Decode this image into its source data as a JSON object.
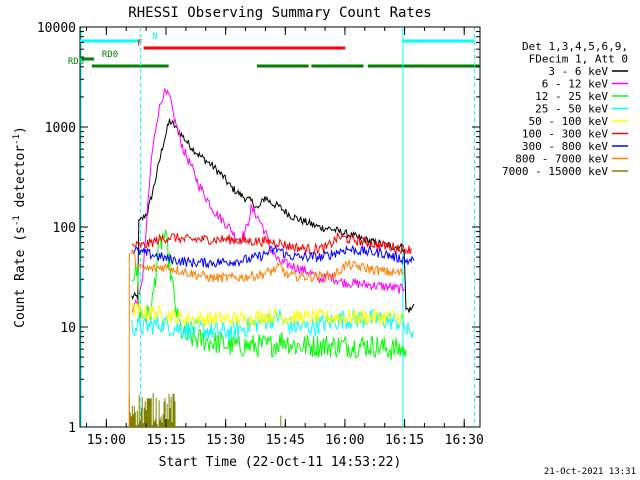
{
  "chart_data": {
    "type": "line",
    "title": "RHESSI Observing Summary Count Rates",
    "xlabel": "Start Time (22-Oct-11 14:53:22)",
    "ylabel_main": "Count Rate (s",
    "ylabel_sup1": "-1",
    "ylabel_mid": " detector",
    "ylabel_sup2": "-1",
    "ylabel_end": ")",
    "x_units": "minutes after 14:53:22",
    "xlim": [
      0,
      100.6
    ],
    "ylim": [
      1,
      10000
    ],
    "yscale": "log",
    "x_ticks": [
      {
        "t": 6.63,
        "label": "15:00"
      },
      {
        "t": 21.63,
        "label": "15:15"
      },
      {
        "t": 36.63,
        "label": "15:30"
      },
      {
        "t": 51.63,
        "label": "15:45"
      },
      {
        "t": 66.63,
        "label": "16:00"
      },
      {
        "t": 81.63,
        "label": "16:15"
      },
      {
        "t": 96.63,
        "label": "16:30"
      }
    ],
    "y_ticks": [
      {
        "v": 1,
        "label": "1"
      },
      {
        "v": 10,
        "label": "10"
      },
      {
        "v": 100,
        "label": "100"
      },
      {
        "v": 1000,
        "label": "1000"
      },
      {
        "v": 10000,
        "label": "10000"
      }
    ],
    "legend_header": [
      "Det 1,3,4,5,6,9,",
      "FDecim 1, Att 0"
    ],
    "legend_placement": "top-right, outside plot",
    "series": [
      {
        "name": "3 - 6 keV",
        "color": "#000000",
        "points": [
          [
            13,
            20
          ],
          [
            14.5,
            20
          ],
          [
            14.8,
            110
          ],
          [
            17,
            140
          ],
          [
            19,
            300
          ],
          [
            21,
            700
          ],
          [
            22.5,
            1150
          ],
          [
            24,
            1000
          ],
          [
            27,
            700
          ],
          [
            30,
            520
          ],
          [
            33,
            420
          ],
          [
            36,
            320
          ],
          [
            38,
            250
          ],
          [
            40,
            215
          ],
          [
            42,
            190
          ],
          [
            43.5,
            175
          ],
          [
            44.8,
            150
          ],
          [
            45.5,
            170
          ],
          [
            46.5,
            200
          ],
          [
            48,
            175
          ],
          [
            50,
            160
          ],
          [
            53,
            130
          ],
          [
            56,
            115
          ],
          [
            60,
            100
          ],
          [
            63,
            96
          ],
          [
            66,
            88
          ],
          [
            70,
            78
          ],
          [
            74,
            70
          ],
          [
            78,
            65
          ],
          [
            81.5,
            62
          ],
          [
            82,
            15
          ],
          [
            83.5,
            15
          ],
          [
            84,
            17
          ]
        ]
      },
      {
        "name": "6 - 12 keV",
        "color": "#ff00ff",
        "points": [
          [
            13,
            15
          ],
          [
            15,
            20
          ],
          [
            16,
            40
          ],
          [
            17,
            150
          ],
          [
            18,
            500
          ],
          [
            19.5,
            1300
          ],
          [
            21,
            2200
          ],
          [
            22.5,
            2000
          ],
          [
            24,
            1100
          ],
          [
            26,
            600
          ],
          [
            28,
            400
          ],
          [
            30,
            260
          ],
          [
            32,
            190
          ],
          [
            34,
            140
          ],
          [
            36,
            115
          ],
          [
            38,
            95
          ],
          [
            39,
            80
          ],
          [
            40.5,
            75
          ],
          [
            42,
            100
          ],
          [
            43,
            150
          ],
          [
            44,
            140
          ],
          [
            45.5,
            110
          ],
          [
            47,
            80
          ],
          [
            48,
            60
          ],
          [
            50,
            45
          ],
          [
            54,
            40
          ],
          [
            58,
            35
          ],
          [
            60,
            30
          ],
          [
            63,
            32
          ],
          [
            66,
            28
          ],
          [
            70,
            27
          ],
          [
            74,
            26
          ],
          [
            78,
            25
          ],
          [
            80,
            24
          ],
          [
            81.5,
            24
          ]
        ]
      },
      {
        "name": "12 - 25 keV",
        "color": "#00ff00",
        "points": [
          [
            13,
            35
          ],
          [
            14.5,
            35
          ],
          [
            15,
            13
          ],
          [
            17,
            13
          ],
          [
            18,
            15
          ],
          [
            19.5,
            50
          ],
          [
            21,
            85
          ],
          [
            22,
            60
          ],
          [
            23,
            30
          ],
          [
            24.5,
            12
          ],
          [
            26,
            8
          ],
          [
            30,
            7.5
          ],
          [
            34,
            7
          ],
          [
            38,
            6.5
          ],
          [
            42,
            6.5
          ],
          [
            46,
            6.5
          ],
          [
            48,
            6.5
          ],
          [
            50,
            7
          ],
          [
            51,
            7.5
          ],
          [
            54,
            6.5
          ],
          [
            58,
            6.5
          ],
          [
            62,
            6.5
          ],
          [
            66,
            6.5
          ],
          [
            70,
            6.5
          ],
          [
            74,
            6.5
          ],
          [
            78,
            6
          ],
          [
            81.5,
            6
          ],
          [
            82,
            5
          ]
        ]
      },
      {
        "name": "25 - 50 keV",
        "color": "#00ffff",
        "points": [
          [
            13,
            10
          ],
          [
            16,
            10
          ],
          [
            19,
            10.5
          ],
          [
            21,
            11
          ],
          [
            23,
            10
          ],
          [
            26,
            9.5
          ],
          [
            30,
            9.5
          ],
          [
            34,
            9
          ],
          [
            38,
            9
          ],
          [
            42,
            10
          ],
          [
            45,
            11
          ],
          [
            48,
            12
          ],
          [
            50,
            13
          ],
          [
            52,
            10.5
          ],
          [
            55,
            10
          ],
          [
            58,
            10
          ],
          [
            62,
            11
          ],
          [
            66,
            12
          ],
          [
            70,
            12
          ],
          [
            74,
            12
          ],
          [
            78,
            11.5
          ],
          [
            81.5,
            11
          ],
          [
            82,
            9
          ],
          [
            84,
            9
          ]
        ]
      },
      {
        "name": "50 - 100 keV",
        "color": "#ffff00",
        "points": [
          [
            13,
            15
          ],
          [
            16,
            14
          ],
          [
            19,
            14
          ],
          [
            23,
            13
          ],
          [
            27,
            12
          ],
          [
            31,
            12
          ],
          [
            35,
            12
          ],
          [
            39,
            12
          ],
          [
            43,
            12
          ],
          [
            47,
            13
          ],
          [
            50.5,
            13
          ],
          [
            51,
            12.5
          ],
          [
            54,
            12.5
          ],
          [
            58,
            12.5
          ],
          [
            62,
            12.5
          ],
          [
            66,
            12.5
          ],
          [
            70,
            12.5
          ],
          [
            74,
            12.5
          ],
          [
            78,
            12.5
          ],
          [
            81.5,
            12.5
          ]
        ]
      },
      {
        "name": "100 - 300 keV",
        "color": "#ff0000",
        "points": [
          [
            13,
            65
          ],
          [
            16,
            65
          ],
          [
            20,
            75
          ],
          [
            23,
            80
          ],
          [
            26,
            75
          ],
          [
            30,
            75
          ],
          [
            34,
            75
          ],
          [
            38,
            75
          ],
          [
            42,
            72
          ],
          [
            46,
            72
          ],
          [
            50,
            70
          ],
          [
            52,
            65
          ],
          [
            55,
            62
          ],
          [
            58,
            60
          ],
          [
            62,
            62
          ],
          [
            65,
            80
          ],
          [
            68,
            75
          ],
          [
            72,
            70
          ],
          [
            76,
            65
          ],
          [
            80,
            62
          ],
          [
            82,
            60
          ],
          [
            83.5,
            60
          ]
        ]
      },
      {
        "name": "300 - 800 keV",
        "color": "#0000ff",
        "points": [
          [
            13,
            60
          ],
          [
            16,
            55
          ],
          [
            19,
            52
          ],
          [
            22,
            48
          ],
          [
            25,
            46
          ],
          [
            28,
            44
          ],
          [
            31,
            44
          ],
          [
            34,
            44
          ],
          [
            37,
            45
          ],
          [
            40,
            46
          ],
          [
            43,
            48
          ],
          [
            46,
            52
          ],
          [
            48,
            58
          ],
          [
            50,
            60
          ],
          [
            52,
            52
          ],
          [
            55,
            50
          ],
          [
            58,
            50
          ],
          [
            61,
            50
          ],
          [
            64,
            55
          ],
          [
            67,
            60
          ],
          [
            70,
            58
          ],
          [
            73,
            56
          ],
          [
            76,
            55
          ],
          [
            79,
            50
          ],
          [
            81.5,
            48
          ],
          [
            82,
            46
          ],
          [
            84,
            46
          ]
        ]
      },
      {
        "name": "800 - 7000 keV",
        "color": "#ff8000",
        "points": [
          [
            13,
            58
          ],
          [
            14.5,
            40
          ],
          [
            16,
            38
          ],
          [
            18,
            38
          ],
          [
            21,
            40
          ],
          [
            24,
            38
          ],
          [
            27,
            35
          ],
          [
            30,
            33
          ],
          [
            33,
            31
          ],
          [
            36,
            31
          ],
          [
            39,
            31
          ],
          [
            42,
            32
          ],
          [
            45,
            33
          ],
          [
            48,
            36
          ],
          [
            50.5,
            40
          ],
          [
            52,
            33
          ],
          [
            55,
            32
          ],
          [
            58,
            32
          ],
          [
            61,
            32
          ],
          [
            64,
            33
          ],
          [
            67,
            42
          ],
          [
            70,
            40
          ],
          [
            73,
            38
          ],
          [
            76,
            36
          ],
          [
            79,
            35
          ],
          [
            81.5,
            35
          ]
        ]
      },
      {
        "name": "7000 - 15000 keV",
        "color": "#808000",
        "points": [
          [
            12.4,
            1.1
          ],
          [
            13,
            1.6
          ],
          [
            16,
            1.7
          ],
          [
            18,
            1.5
          ],
          [
            20,
            1.6
          ],
          [
            22,
            1.4
          ],
          [
            24,
            1.1
          ]
        ]
      }
    ],
    "segment_bars": [
      {
        "label": "N",
        "color": "#00ffff",
        "ranges": [
          [
            0,
            15.2
          ],
          [
            81.2,
            99.2
          ]
        ]
      },
      {
        "label": "F",
        "color": "#ff0000",
        "ranges": [
          [
            16,
            66.7
          ]
        ]
      },
      {
        "label": "RD0",
        "color": "#008000",
        "ranges": [
          [
            0,
            3.5
          ]
        ]
      },
      {
        "label": "RD6",
        "color": "#008000",
        "ranges": [
          [
            3,
            22.3
          ],
          [
            44.5,
            57.5
          ],
          [
            58.2,
            71.3
          ],
          [
            72.4,
            100.6
          ]
        ]
      }
    ],
    "vertical_lines": [
      {
        "t": 15.2,
        "color": "#00ffff",
        "style": "dashed"
      },
      {
        "t": 81.2,
        "color": "#00ffff",
        "style": "solid"
      },
      {
        "t": 99.2,
        "color": "#00ffff",
        "style": "dashed"
      },
      {
        "t": 0,
        "color": "#00ffff",
        "style": "solid"
      }
    ],
    "grid": false
  },
  "footer": {
    "timestamp": "21-Oct-2021 13:31"
  }
}
